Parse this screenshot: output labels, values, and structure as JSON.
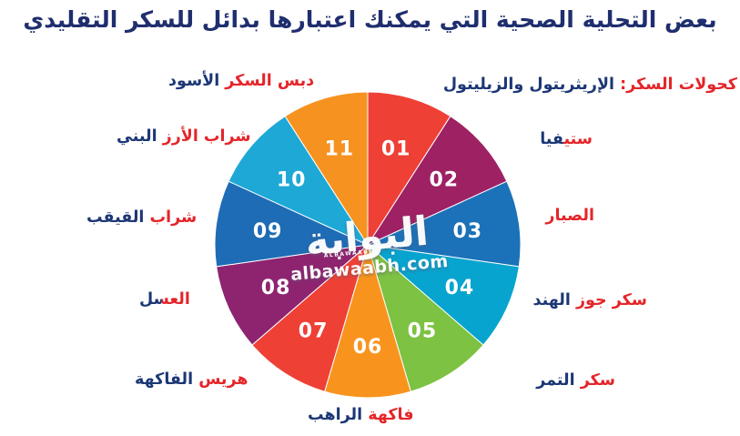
{
  "title": "بعض التحلية الصحية التي يمكنك اعتبارها بدائل للسكر التقليدي",
  "watermark": {
    "logo_text": "البوابة",
    "logo_small_text": "ALBAWAABH",
    "site": "albawaabh.com"
  },
  "colors": {
    "title_navy": "#1f2e6e",
    "label_navy": "#1c3775",
    "label_red": "#e42529",
    "slice_number_text": "#ffffff",
    "background": "#ffffff"
  },
  "chart_data": {
    "type": "pie",
    "title": "بعض التحلية الصحية التي يمكنك اعتبارها بدائل للسكر التقليدي",
    "equal_slices": true,
    "slice_value_each_percent": 9.09,
    "start_angle_deg": 0,
    "direction": "clockwise",
    "legend_position": "labels-around-pie",
    "slices": [
      {
        "number": "01",
        "label": "كحولات السكر: الإريثريتول والزيليتول",
        "color": "#ee4035"
      },
      {
        "number": "02",
        "label": "ستيفيا",
        "color": "#9e2164"
      },
      {
        "number": "03",
        "label": "الصبار",
        "color": "#1b72b8"
      },
      {
        "number": "04",
        "label": "سكر جوز الهند",
        "color": "#07a4cf"
      },
      {
        "number": "05",
        "label": "سكر التمر",
        "color": "#7dc242"
      },
      {
        "number": "06",
        "label": "فاكهة الراهب",
        "color": "#f8941d"
      },
      {
        "number": "07",
        "label": "هريس الفاكهة",
        "color": "#ee4035"
      },
      {
        "number": "08",
        "label": "العسل",
        "color": "#8e2470"
      },
      {
        "number": "09",
        "label": "شراب القيقب",
        "color": "#1e6cb5"
      },
      {
        "number": "10",
        "label": "شراب الأرز البني",
        "color": "#1ea8d6"
      },
      {
        "number": "11",
        "label": "دبس السكر الأسود",
        "color": "#f69320"
      }
    ]
  },
  "labels": {
    "sugar_alcohols": {
      "slice": "01",
      "parts": [
        {
          "text": "كحولات السكر:",
          "style": "red"
        },
        {
          "text": "الإريثريتول والزيليتول",
          "style": "navy"
        }
      ]
    },
    "stevia": {
      "slice": "02",
      "text": "ستيفيا",
      "red_part": "ستي",
      "navy_part": "فيا"
    },
    "aloe": {
      "slice": "03",
      "text": "الصبار",
      "style": "red"
    },
    "coconut_sugar": {
      "slice": "04",
      "parts": [
        {
          "text": "سكر جوز",
          "style": "red"
        },
        {
          "text": "الهند",
          "style": "navy"
        }
      ]
    },
    "date_sugar": {
      "slice": "05",
      "parts": [
        {
          "text": "سكر",
          "style": "red"
        },
        {
          "text": "التمر",
          "style": "navy"
        }
      ]
    },
    "monk_fruit": {
      "slice": "06",
      "parts": [
        {
          "text": "فاكهة",
          "style": "red"
        },
        {
          "text": "الراهب",
          "style": "navy"
        }
      ]
    },
    "fruit_puree": {
      "slice": "07",
      "parts": [
        {
          "text": "هريس",
          "style": "red"
        },
        {
          "text": "الفاكهة",
          "style": "navy"
        }
      ]
    },
    "honey": {
      "slice": "08",
      "text": "العسل",
      "red_part": "الع",
      "navy_part": "سل"
    },
    "maple_syrup": {
      "slice": "09",
      "parts": [
        {
          "text": "شراب",
          "style": "red"
        },
        {
          "text": "القيقب",
          "style": "navy"
        }
      ]
    },
    "brown_rice_syrup": {
      "slice": "10",
      "parts": [
        {
          "text": "شراب الأرز",
          "style": "red"
        },
        {
          "text": "البني",
          "style": "navy"
        }
      ]
    },
    "molasses": {
      "slice": "11",
      "parts": [
        {
          "text": "دبس السكر",
          "style": "red"
        },
        {
          "text": "الأسود",
          "style": "navy"
        }
      ]
    }
  }
}
